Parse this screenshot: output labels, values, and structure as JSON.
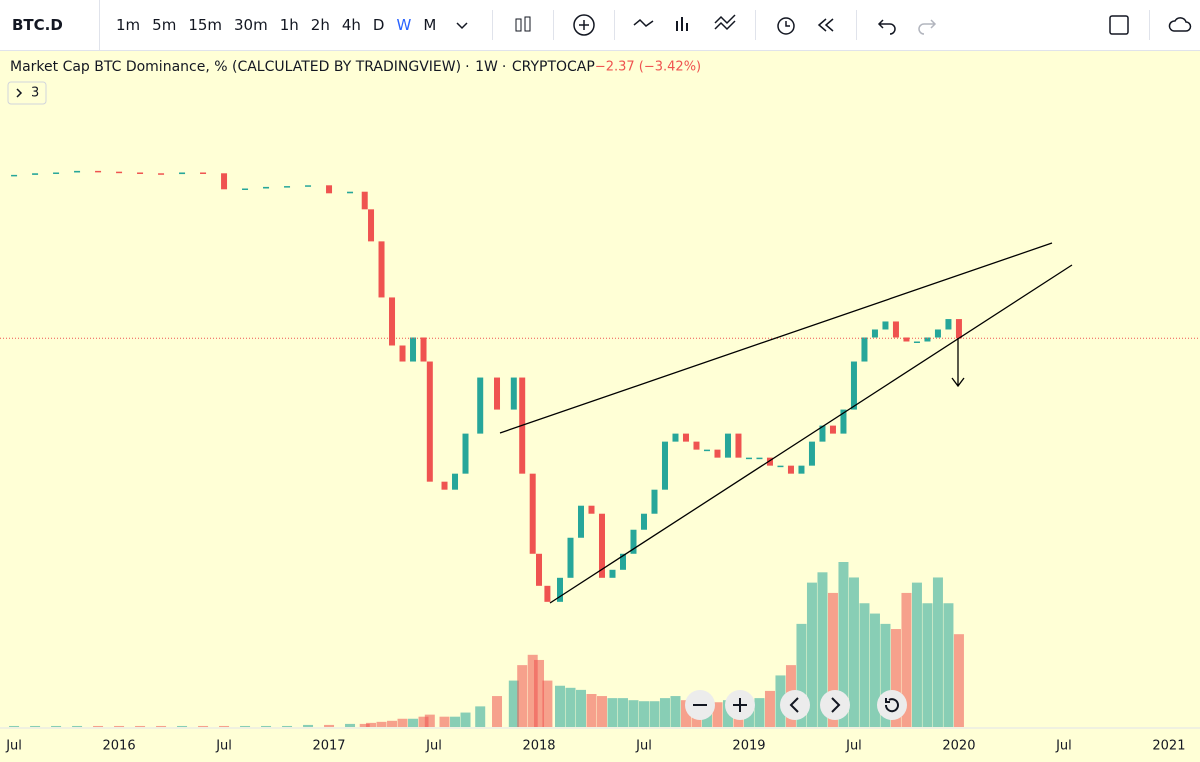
{
  "toolbar": {
    "symbol": "BTC.D",
    "intervals": [
      "1m",
      "5m",
      "15m",
      "30m",
      "1h",
      "2h",
      "4h",
      "D",
      "W",
      "M"
    ],
    "active_interval": 8
  },
  "chart_data": {
    "type": "candlestick",
    "title": "Market Cap BTC Dominance, % (CALCULATED BY TRADINGVIEW)",
    "interval": "1W",
    "exchange": "CRYPTOCAP",
    "change_label": "−2.37 (−3.42%)",
    "indicator_count": "3",
    "x": [
      2015.5,
      2015.6,
      2015.7,
      2015.8,
      2015.9,
      2016.0,
      2016.1,
      2016.2,
      2016.3,
      2016.4,
      2016.5,
      2016.6,
      2016.7,
      2016.8,
      2016.9,
      2017.0,
      2017.1,
      2017.17,
      2017.2,
      2017.25,
      2017.3,
      2017.35,
      2017.4,
      2017.45,
      2017.48,
      2017.55,
      2017.6,
      2017.65,
      2017.72,
      2017.8,
      2017.88,
      2017.92,
      2017.97,
      2018.0,
      2018.04,
      2018.1,
      2018.15,
      2018.2,
      2018.25,
      2018.3,
      2018.35,
      2018.4,
      2018.45,
      2018.5,
      2018.55,
      2018.6,
      2018.65,
      2018.7,
      2018.75,
      2018.8,
      2018.85,
      2018.9,
      2018.95,
      2019.0,
      2019.05,
      2019.1,
      2019.15,
      2019.2,
      2019.25,
      2019.3,
      2019.35,
      2019.4,
      2019.45,
      2019.5,
      2019.55,
      2019.6,
      2019.65,
      2019.7,
      2019.75,
      2019.8,
      2019.85,
      2019.9,
      2019.95,
      2020.0
    ],
    "values": [
      87.3,
      87.5,
      87.6,
      87.8,
      87.7,
      87.6,
      87.5,
      87.4,
      87.6,
      87.5,
      85.5,
      85.6,
      85.8,
      85.9,
      86.0,
      85.0,
      85.2,
      83,
      79,
      72,
      66,
      64,
      67,
      64,
      49,
      48,
      50,
      55,
      62,
      58,
      62,
      50,
      40,
      36,
      34,
      37,
      42,
      46,
      45,
      37,
      38,
      40,
      43,
      45,
      48,
      54,
      55,
      54,
      53,
      53,
      52,
      55,
      52,
      52,
      52,
      51,
      51,
      50,
      51,
      54,
      56,
      55,
      58,
      64,
      67,
      68,
      69,
      67,
      66.5,
      66.5,
      67,
      68,
      69.3,
      66.9
    ],
    "volume": [
      1,
      1,
      1,
      1,
      1,
      1,
      1,
      1,
      1,
      1,
      1,
      1,
      1,
      1,
      2,
      2,
      3,
      3,
      4,
      5,
      6,
      8,
      8,
      10,
      12,
      10,
      10,
      14,
      20,
      30,
      45,
      60,
      70,
      65,
      45,
      40,
      38,
      36,
      32,
      30,
      28,
      28,
      26,
      25,
      25,
      28,
      30,
      26,
      24,
      22,
      24,
      26,
      25,
      25,
      28,
      35,
      50,
      60,
      100,
      140,
      150,
      130,
      160,
      145,
      120,
      110,
      100,
      95,
      130,
      140,
      120,
      145,
      120,
      90
    ],
    "up_color": "#26a69a",
    "down_color": "#ef5350",
    "xlim": [
      2015.433,
      2021.148
    ],
    "ylim": [
      18,
      95.4
    ],
    "vlim": [
      0,
      160
    ],
    "xticks": [
      {
        "value": 2015.5,
        "label": "Jul"
      },
      2016,
      {
        "value": 2016.5,
        "label": "Jul"
      },
      2017,
      {
        "value": 2017.5,
        "label": "Jul"
      },
      2018,
      {
        "value": 2018.5,
        "label": "Jul"
      },
      2019,
      {
        "value": 2019.5,
        "label": "Jul"
      },
      2020,
      {
        "value": 2020.5,
        "label": "Jul"
      },
      2021
    ],
    "last_price_line": true
  }
}
